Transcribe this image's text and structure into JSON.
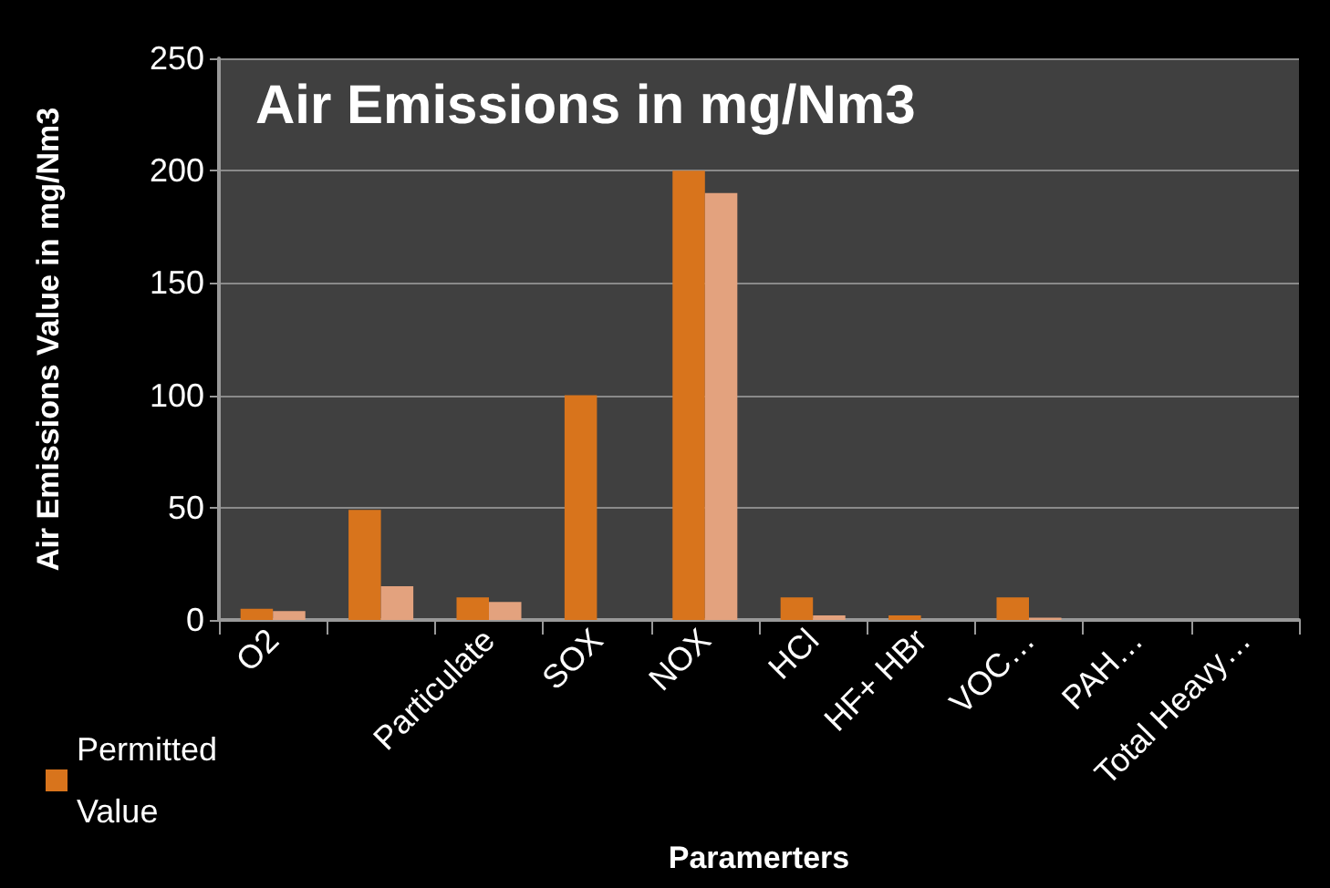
{
  "chart_data": {
    "type": "bar",
    "title": "Air Emissions in mg/Nm3",
    "xlabel": "Paramerters",
    "ylabel": "Air Emissions Value in mg/Nm3",
    "categories": [
      "O2",
      null,
      "Particulate",
      "SOX",
      "NOX",
      "HCl",
      "HF+ HBr",
      "VOC…",
      "PAH…",
      "Total Heavy…"
    ],
    "series": [
      {
        "name": "Permitted Value",
        "color": "#d8741c",
        "values": [
          5,
          49,
          10,
          100,
          200,
          10,
          2,
          10,
          0,
          0
        ]
      },
      {
        "color": "#e3a27e",
        "values": [
          4,
          15,
          8,
          0,
          190,
          2,
          0,
          1,
          0,
          0
        ]
      }
    ],
    "ylim": [
      0,
      250
    ],
    "yticks": [
      0,
      50,
      100,
      150,
      200,
      250
    ],
    "grid": "y",
    "legend": "bottom left"
  }
}
